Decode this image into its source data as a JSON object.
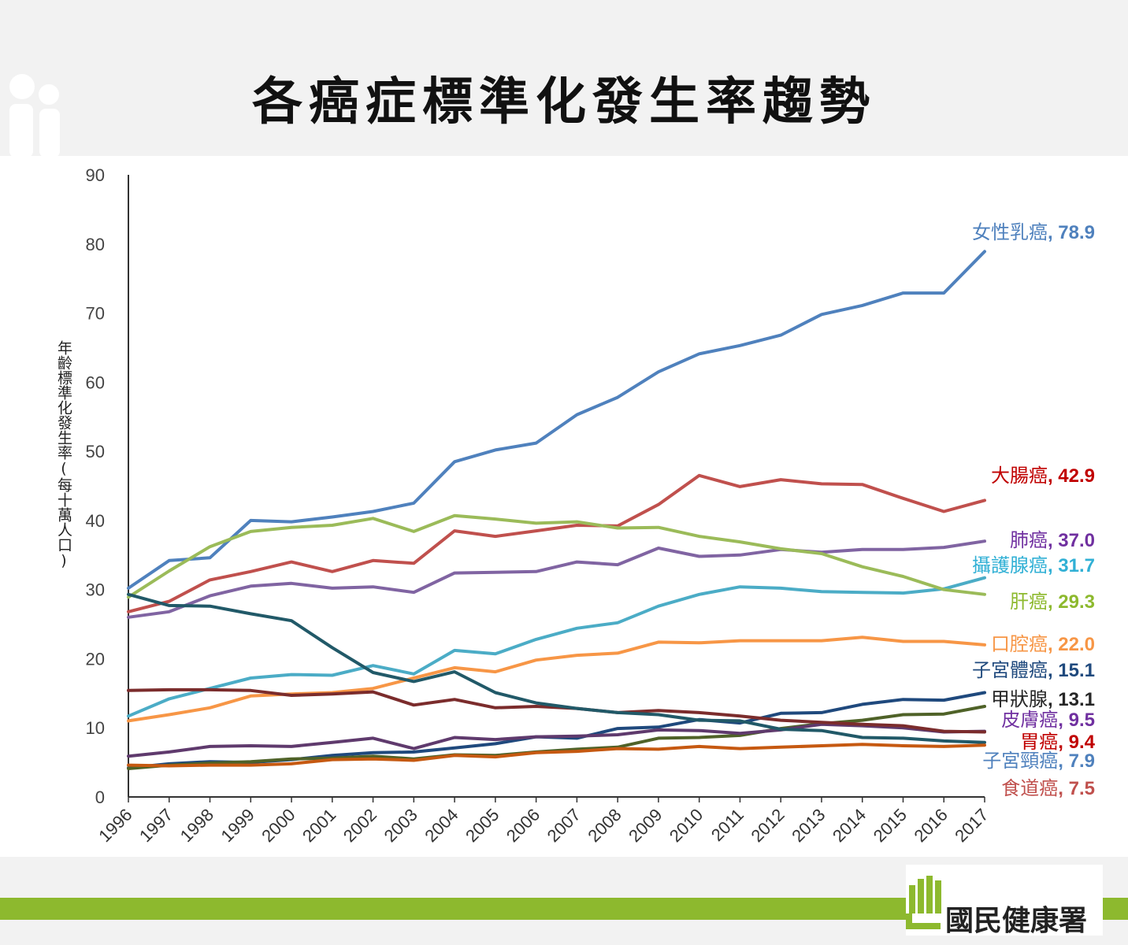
{
  "title": "各癌症標準化發生率趨勢",
  "org": "國民健康署",
  "colors": {
    "header_bg": "#f2f2f2",
    "accent_green": "#8db92e"
  },
  "chart_data": {
    "type": "line",
    "title": "各癌症標準化發生率趨勢",
    "ylabel": "年齡標準化發生率(每十萬人口)",
    "xlabel": "",
    "ylim": [
      0,
      90
    ],
    "yticks": [
      0,
      10,
      20,
      30,
      40,
      50,
      60,
      70,
      80,
      90
    ],
    "x": [
      "1996",
      "1997",
      "1998",
      "1999",
      "2000",
      "2001",
      "2002",
      "2003",
      "2004",
      "2005",
      "2006",
      "2007",
      "2008",
      "2009",
      "2010",
      "2011",
      "2012",
      "2013",
      "2014",
      "2015",
      "2016",
      "2017"
    ],
    "grid": false,
    "legend": "end-of-line labels",
    "series": [
      {
        "name": "女性乳癌",
        "end_value": "78.9",
        "color": "#4f81bd",
        "label_color": "#4f81bd",
        "values": [
          30.2,
          34.2,
          34.6,
          40.0,
          39.8,
          40.5,
          41.3,
          42.5,
          48.5,
          50.2,
          51.2,
          55.3,
          57.8,
          61.5,
          64.1,
          65.3,
          66.8,
          69.8,
          71.1,
          72.9,
          72.9,
          78.9
        ]
      },
      {
        "name": "大腸癌",
        "end_value": "42.9",
        "color": "#c0504d",
        "label_color": "#c00000",
        "values": [
          26.8,
          28.3,
          31.4,
          32.6,
          34.0,
          32.6,
          34.2,
          33.8,
          38.5,
          37.7,
          38.5,
          39.3,
          39.2,
          42.3,
          46.5,
          44.9,
          45.9,
          45.3,
          45.2,
          43.2,
          41.3,
          42.9
        ]
      },
      {
        "name": "肺癌",
        "end_value": "37.0",
        "color": "#8064a2",
        "label_color": "#7030a0",
        "values": [
          26.0,
          26.8,
          29.1,
          30.5,
          30.9,
          30.2,
          30.4,
          29.6,
          32.4,
          32.5,
          32.6,
          34.0,
          33.6,
          36.0,
          34.8,
          35.0,
          35.8,
          35.4,
          35.8,
          35.8,
          36.1,
          37.0
        ]
      },
      {
        "name": "攝護腺癌",
        "end_value": "31.7",
        "color": "#4bacc6",
        "label_color": "#31b0d5",
        "values": [
          11.7,
          14.2,
          15.7,
          17.2,
          17.7,
          17.6,
          19.0,
          17.8,
          21.2,
          20.7,
          22.8,
          24.4,
          25.2,
          27.6,
          29.3,
          30.4,
          30.2,
          29.7,
          29.6,
          29.5,
          30.1,
          31.7
        ]
      },
      {
        "name": "肝癌",
        "end_value": "29.3",
        "color": "#9bbb59",
        "label_color": "#8db92e",
        "values": [
          28.9,
          32.7,
          36.2,
          38.4,
          39.0,
          39.3,
          40.3,
          38.4,
          40.7,
          40.2,
          39.6,
          39.8,
          38.9,
          39.0,
          37.7,
          36.9,
          35.9,
          35.2,
          33.3,
          31.9,
          30.0,
          29.3
        ]
      },
      {
        "name": "口腔癌",
        "end_value": "22.0",
        "color": "#f79646",
        "label_color": "#f79646",
        "values": [
          11.0,
          11.9,
          12.9,
          14.6,
          14.9,
          15.1,
          15.7,
          17.2,
          18.7,
          18.1,
          19.8,
          20.5,
          20.8,
          22.4,
          22.3,
          22.6,
          22.6,
          22.6,
          23.1,
          22.5,
          22.5,
          22.0
        ]
      },
      {
        "name": "子宮體癌",
        "end_value": "15.1",
        "color": "#1f497d",
        "label_color": "#1f497d",
        "values": [
          4.2,
          4.8,
          5.1,
          5.0,
          5.4,
          6.0,
          6.4,
          6.5,
          7.1,
          7.7,
          8.7,
          8.5,
          9.9,
          10.1,
          11.2,
          10.7,
          12.1,
          12.2,
          13.4,
          14.1,
          14.0,
          15.1
        ]
      },
      {
        "name": "甲狀腺",
        "end_value": "13.1",
        "color": "#4f6228",
        "label_color": "#262626",
        "values": [
          4.1,
          4.6,
          4.9,
          5.1,
          5.5,
          5.6,
          5.9,
          5.5,
          6.1,
          6.0,
          6.5,
          6.9,
          7.2,
          8.5,
          8.6,
          8.9,
          9.9,
          10.6,
          11.1,
          11.9,
          12.0,
          13.1
        ]
      },
      {
        "name": "皮膚癌",
        "end_value": "9.5",
        "color": "#5f3a6d",
        "label_color": "#7030a0",
        "values": [
          5.9,
          6.5,
          7.3,
          7.4,
          7.3,
          7.9,
          8.5,
          7.0,
          8.6,
          8.3,
          8.7,
          8.8,
          9.0,
          9.7,
          9.6,
          9.2,
          9.7,
          10.5,
          10.3,
          10.0,
          9.4,
          9.5
        ]
      },
      {
        "name": "胃癌",
        "end_value": "9.4",
        "color": "#7b2c2c",
        "label_color": "#c00000",
        "values": [
          15.4,
          15.5,
          15.5,
          15.4,
          14.7,
          14.9,
          15.2,
          13.3,
          14.1,
          12.9,
          13.1,
          12.8,
          12.2,
          12.5,
          12.2,
          11.7,
          11.1,
          10.8,
          10.5,
          10.3,
          9.5,
          9.4
        ]
      },
      {
        "name": "子宮頸癌",
        "end_value": "7.9",
        "color": "#215968",
        "label_color": "#4f81bd",
        "values": [
          29.3,
          27.7,
          27.6,
          26.5,
          25.5,
          21.6,
          18.0,
          16.7,
          18.1,
          15.1,
          13.6,
          12.8,
          12.2,
          11.9,
          11.1,
          11.0,
          9.8,
          9.6,
          8.6,
          8.5,
          8.1,
          7.9
        ]
      },
      {
        "name": "食道癌",
        "end_value": "7.5",
        "color": "#c65911",
        "label_color": "#c0504d",
        "values": [
          4.6,
          4.5,
          4.6,
          4.6,
          4.8,
          5.4,
          5.5,
          5.3,
          6.0,
          5.8,
          6.4,
          6.6,
          7.0,
          6.9,
          7.3,
          7.0,
          7.2,
          7.4,
          7.6,
          7.4,
          7.3,
          7.5
        ]
      }
    ]
  }
}
